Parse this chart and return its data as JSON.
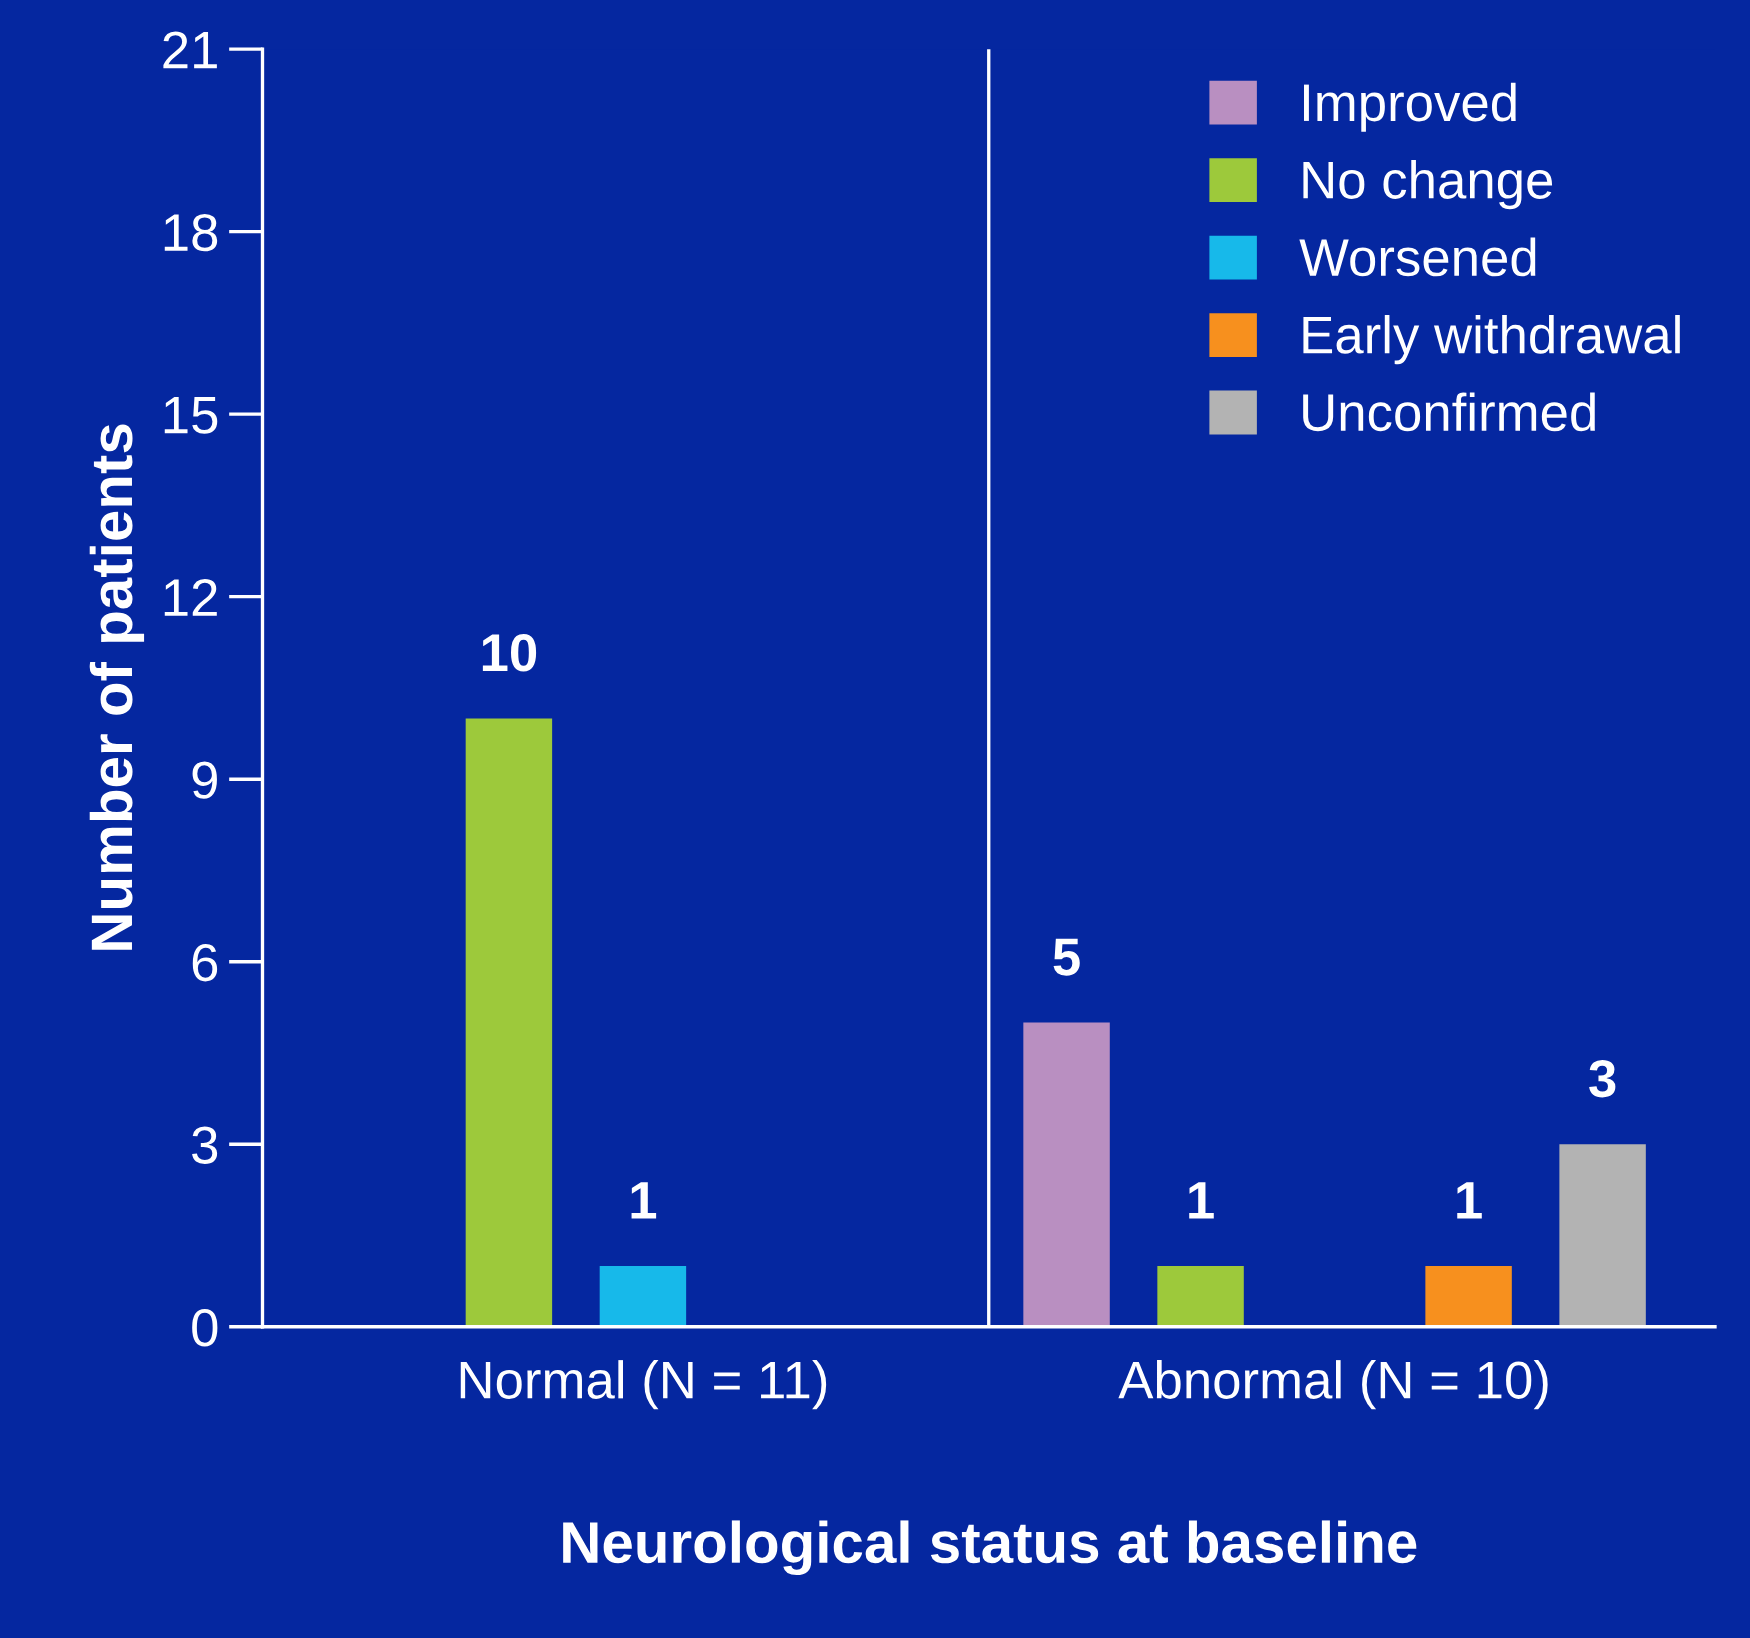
{
  "chart_data": {
    "type": "bar",
    "xlabel": "Neurological status at baseline",
    "ylabel": "Number of patients",
    "categories": [
      "Normal (N = 11)",
      "Abnormal (N = 10)"
    ],
    "series": [
      {
        "name": "Improved",
        "color": "#b98fc1",
        "values": [
          null,
          5
        ]
      },
      {
        "name": "No change",
        "color": "#9dc93b",
        "values": [
          10,
          1
        ]
      },
      {
        "name": "Worsened",
        "color": "#17b9ea",
        "values": [
          1,
          null
        ]
      },
      {
        "name": "Early withdrawal",
        "color": "#f7901e",
        "values": [
          null,
          1
        ]
      },
      {
        "name": "Unconfirmed",
        "color": "#b3b3b3",
        "values": [
          null,
          3
        ]
      }
    ],
    "ylim": [
      0,
      21
    ],
    "yticks": [
      0,
      3,
      6,
      9,
      12,
      15,
      18,
      21
    ],
    "data_labels": true,
    "legend": "top right",
    "grid": false
  }
}
